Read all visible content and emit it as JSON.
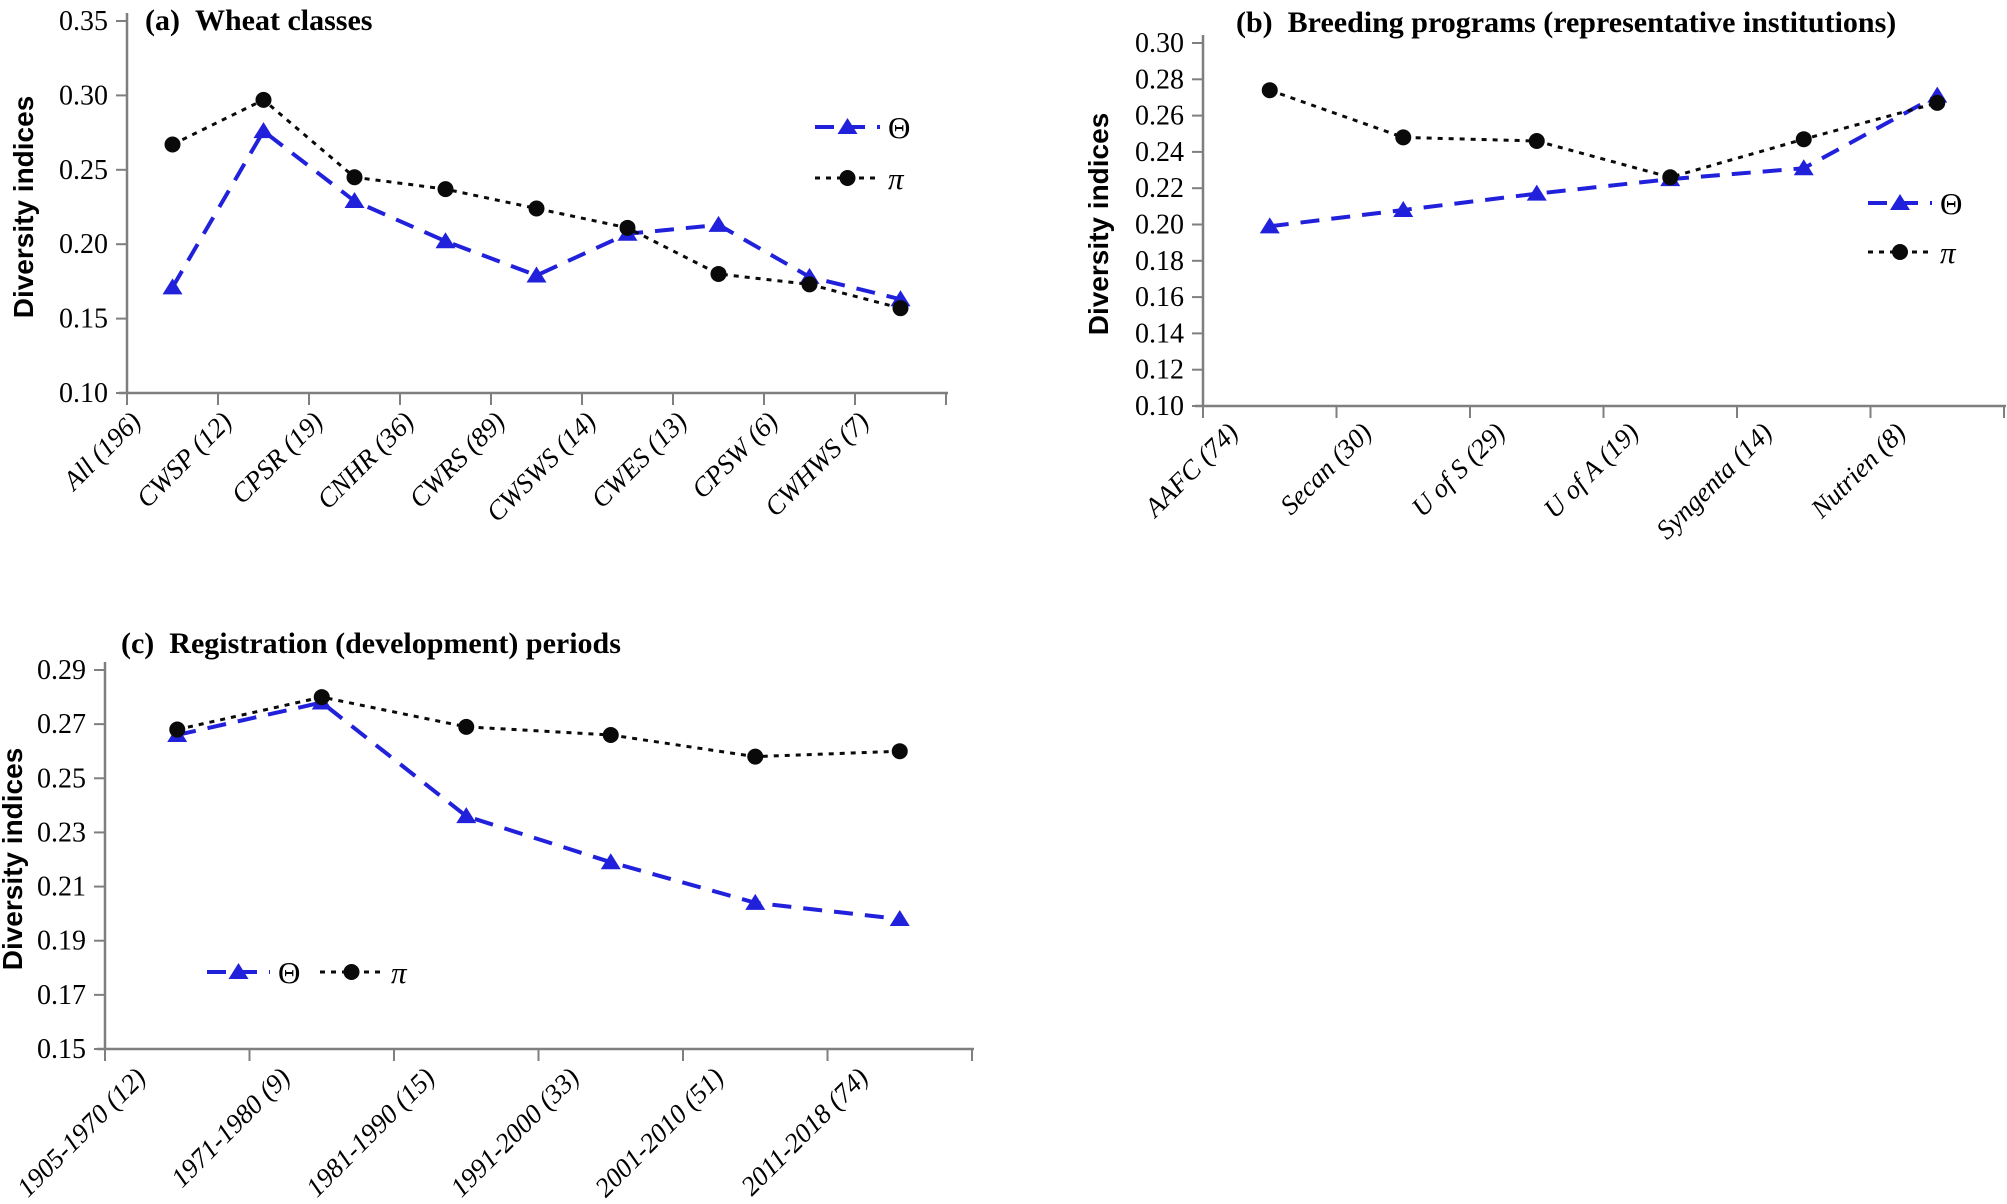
{
  "figure": {
    "background": "#ffffff"
  },
  "colors": {
    "theta_series": "#2121dc",
    "pi_series": "#0a0a0a",
    "axis": "#7f7f7f",
    "text": "#000000"
  },
  "chart_data": [
    {
      "id": "a",
      "type": "line",
      "title_prefix": "(a)",
      "title": "Wheat classes",
      "ylabel": "Diversity indices",
      "ylim": [
        0.1,
        0.35
      ],
      "yticks": [
        0.35,
        0.3,
        0.25,
        0.2,
        0.15,
        0.1
      ],
      "grid": false,
      "legend_position": "inside-upper-right",
      "categories": [
        "All (196)",
        "CWSP (12)",
        "CPSR (19)",
        "CNHR (36)",
        "CWRS (89)",
        "CWSWS (14)",
        "CWES (13)",
        "CPSW (6)",
        "CWHWS (7)"
      ],
      "series": [
        {
          "name": "Θ",
          "marker": "triangle",
          "line": "dashed",
          "color": "#2121dc",
          "values": [
            0.171,
            0.276,
            0.229,
            0.202,
            0.179,
            0.207,
            0.213,
            0.178,
            0.163
          ]
        },
        {
          "name": "π",
          "marker": "circle",
          "line": "dotted",
          "color": "#0a0a0a",
          "values": [
            0.267,
            0.297,
            0.245,
            0.237,
            0.224,
            0.211,
            0.18,
            0.173,
            0.157
          ]
        }
      ]
    },
    {
      "id": "b",
      "type": "line",
      "title_prefix": "(b)",
      "title": "Breeding programs (representative institutions)",
      "ylabel": "Diversity indices",
      "ylim": [
        0.1,
        0.3
      ],
      "yticks": [
        0.3,
        0.28,
        0.26,
        0.24,
        0.22,
        0.2,
        0.18,
        0.16,
        0.14,
        0.12,
        0.1
      ],
      "grid": false,
      "legend_position": "inside-middle-right",
      "categories": [
        "AAFC (74)",
        "Secan (30)",
        "U of S (29)",
        "U of A (19)",
        "Syngenta (14)",
        "Nutrien (8)"
      ],
      "series": [
        {
          "name": "Θ",
          "marker": "triangle",
          "line": "dashed",
          "color": "#2121dc",
          "values": [
            0.199,
            0.208,
            0.217,
            0.225,
            0.231,
            0.271
          ]
        },
        {
          "name": "π",
          "marker": "circle",
          "line": "dotted",
          "color": "#0a0a0a",
          "values": [
            0.274,
            0.248,
            0.246,
            0.226,
            0.247,
            0.267
          ]
        }
      ]
    },
    {
      "id": "c",
      "type": "line",
      "title_prefix": "(c)",
      "title": "Registration (development) periods",
      "ylabel": "Diversity indices",
      "ylim": [
        0.15,
        0.29
      ],
      "yticks": [
        0.29,
        0.27,
        0.25,
        0.23,
        0.21,
        0.19,
        0.17,
        0.15
      ],
      "grid": false,
      "legend_position": "inside-lower-left",
      "categories": [
        "1905-1970 (12)",
        "1971-1980 (9)",
        "1981-1990 (15)",
        "1991-2000 (33)",
        "2001-2010 (51)",
        "2011-2018 (74)"
      ],
      "series": [
        {
          "name": "Θ",
          "marker": "triangle",
          "line": "dashed",
          "color": "#2121dc",
          "values": [
            0.266,
            0.278,
            0.236,
            0.219,
            0.204,
            0.198
          ]
        },
        {
          "name": "π",
          "marker": "circle",
          "line": "dotted",
          "color": "#0a0a0a",
          "values": [
            0.268,
            0.28,
            0.269,
            0.266,
            0.258,
            0.26
          ]
        }
      ]
    }
  ]
}
